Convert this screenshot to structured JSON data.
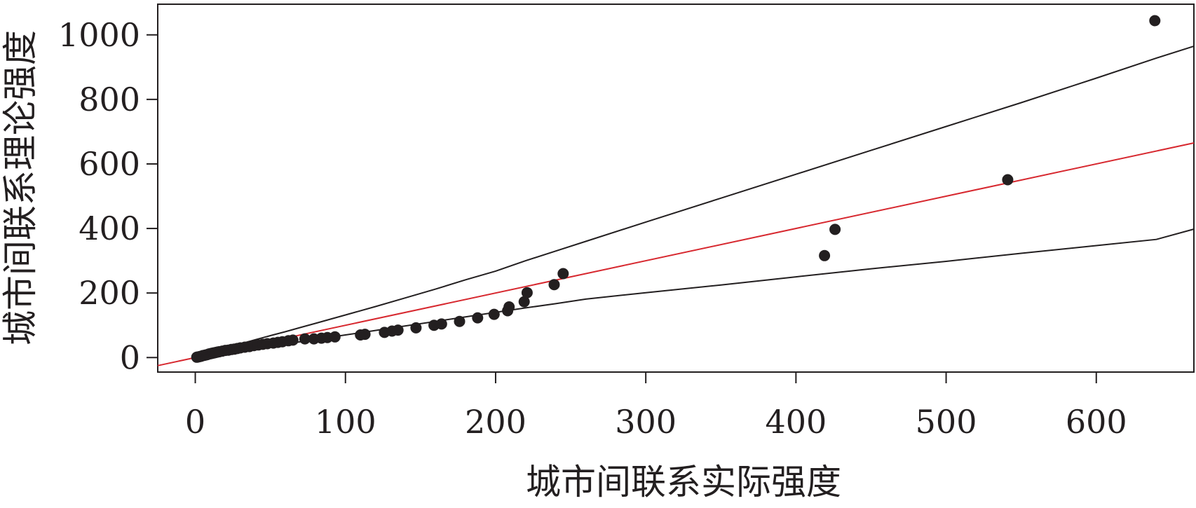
{
  "chart_data": {
    "type": "scatter",
    "xlabel": "城市间联系实际强度",
    "ylabel": "城市间联系理论强度",
    "xlim": [
      -25,
      665
    ],
    "ylim": [
      -45,
      1095
    ],
    "x_ticks": [
      "0",
      "100",
      "200",
      "300",
      "400",
      "500",
      "600"
    ],
    "x_tick_values": [
      0,
      100,
      200,
      300,
      400,
      500,
      600
    ],
    "y_ticks": [
      "0",
      "200",
      "400",
      "600",
      "800",
      "1000"
    ],
    "y_tick_values": [
      0,
      200,
      400,
      600,
      800,
      1000
    ],
    "grid": false,
    "points": {
      "color": "#231f20",
      "x": [
        1,
        2,
        3,
        4,
        5,
        6,
        7,
        8,
        9,
        10,
        11,
        12,
        13,
        14,
        15,
        16,
        18,
        20,
        22,
        24,
        26,
        28,
        30,
        33,
        36,
        39,
        42,
        45,
        48,
        52,
        55,
        58,
        62,
        65,
        73,
        79,
        84,
        88,
        93,
        110,
        113,
        126,
        131,
        135,
        147,
        159,
        164,
        176,
        188,
        199,
        208,
        209,
        219,
        221,
        239,
        245,
        419,
        426,
        541,
        639
      ],
      "y": [
        1,
        2,
        3,
        4,
        6,
        7,
        8,
        9,
        11,
        12,
        13,
        14,
        15,
        16,
        17,
        18,
        20,
        22,
        23,
        25,
        26,
        28,
        30,
        32,
        34,
        37,
        39,
        41,
        43,
        45,
        47,
        49,
        52,
        54,
        58,
        58,
        60,
        62,
        64,
        70,
        72,
        78,
        82,
        85,
        92,
        100,
        104,
        112,
        123,
        134,
        145,
        157,
        173,
        201,
        226,
        260,
        316,
        397,
        551,
        1044
      ]
    },
    "series": [
      {
        "type": "line",
        "color": "#d7282f",
        "x": [
          -25,
          665
        ],
        "y": [
          -25,
          665
        ]
      },
      {
        "type": "line",
        "color": "#231f20",
        "x": [
          0,
          10,
          20,
          30,
          40,
          50,
          60,
          70,
          80,
          90,
          100,
          120,
          140,
          160,
          180,
          200,
          220,
          240,
          260,
          300,
          350,
          400,
          450,
          500,
          550,
          600,
          640,
          665
        ],
        "y": [
          0,
          16,
          30,
          42,
          55,
          68,
          80,
          93,
          106,
          119,
          132,
          158,
          185,
          212,
          241,
          268,
          300,
          330,
          360,
          420,
          494,
          568,
          642,
          716,
          790,
          866,
          928,
          965
        ]
      },
      {
        "type": "line",
        "color": "#231f20",
        "x": [
          0,
          10,
          20,
          30,
          40,
          50,
          60,
          70,
          80,
          90,
          100,
          120,
          140,
          160,
          180,
          200,
          220,
          240,
          260,
          300,
          350,
          400,
          450,
          500,
          550,
          600,
          640,
          665
        ],
        "y": [
          0,
          7,
          14,
          21,
          28,
          35,
          42,
          49,
          56,
          63,
          70,
          84,
          98,
          112,
          126,
          140,
          154,
          167,
          181,
          201,
          225,
          250,
          275,
          298,
          323,
          347,
          366,
          398
        ]
      }
    ]
  }
}
